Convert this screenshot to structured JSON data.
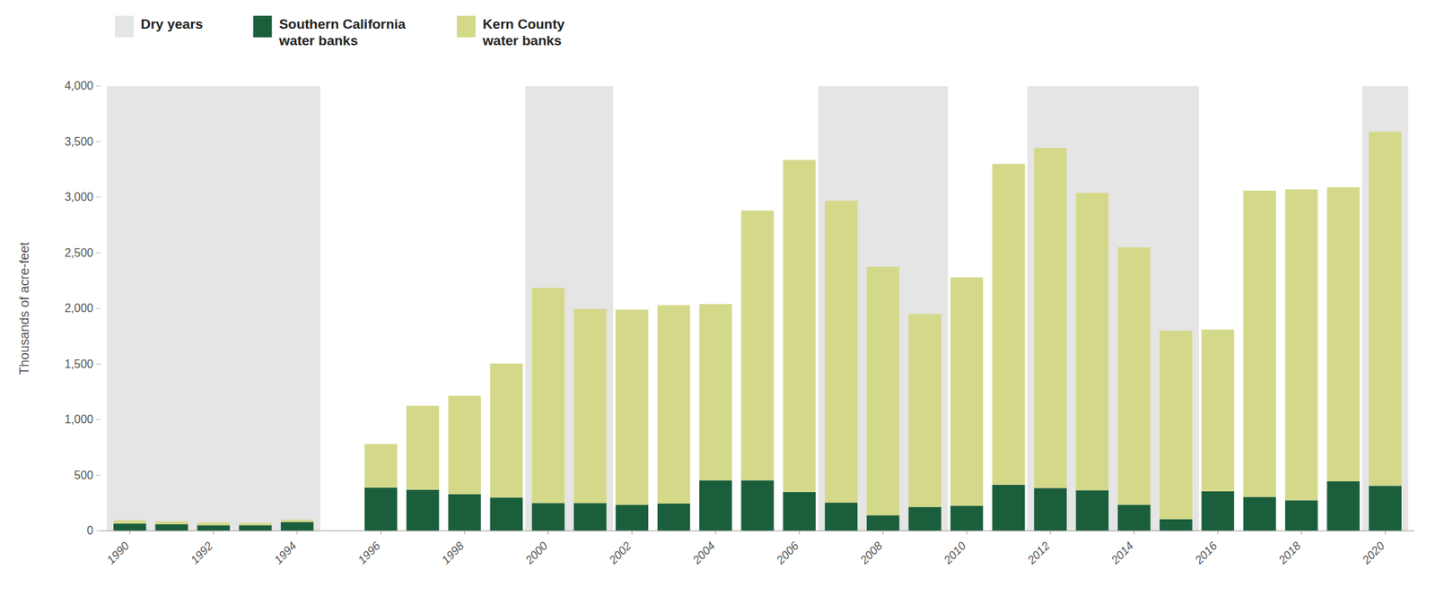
{
  "chart_data": {
    "type": "bar",
    "stacked": true,
    "grid": false,
    "legend": "top",
    "ylabel": "Thousands of acre-feet",
    "x": [
      1990,
      1991,
      1992,
      1993,
      1994,
      1995,
      1996,
      1997,
      1998,
      1999,
      2000,
      2001,
      2002,
      2003,
      2004,
      2005,
      2006,
      2007,
      2008,
      2009,
      2010,
      2011,
      2012,
      2013,
      2014,
      2015,
      2016,
      2017,
      2018,
      2019,
      2020
    ],
    "xlim": [
      1989.3,
      2020.7
    ],
    "xticks": [
      1990,
      1992,
      1994,
      1996,
      1998,
      2000,
      2002,
      2004,
      2006,
      2008,
      2010,
      2012,
      2014,
      2016,
      2018,
      2020
    ],
    "ylim": [
      0,
      4000
    ],
    "yticks": [
      0,
      500,
      {
        "value": 1000,
        "label": "1,000"
      },
      {
        "value": 1500,
        "label": "1,500"
      },
      {
        "value": 2000,
        "label": "2,000"
      },
      {
        "value": 2500,
        "label": "2,500"
      },
      {
        "value": 3000,
        "label": "3,000"
      },
      {
        "value": 3500,
        "label": "3,500"
      },
      {
        "value": 4000,
        "label": "4,000"
      }
    ],
    "bands": {
      "name": "Dry years",
      "color": "#e5e5e5",
      "ranges": [
        [
          1990,
          1993
        ],
        [
          1994,
          1994
        ],
        [
          2000,
          2001
        ],
        [
          2007,
          2009
        ],
        [
          2012,
          2015
        ],
        [
          2020,
          2020
        ]
      ]
    },
    "series": [
      {
        "name": "Southern California\nwater banks",
        "color": "#1b5e3b",
        "values": [
          65,
          60,
          50,
          50,
          80,
          0,
          390,
          370,
          330,
          300,
          250,
          250,
          235,
          245,
          455,
          455,
          350,
          255,
          140,
          215,
          225,
          415,
          385,
          365,
          235,
          105,
          355,
          305,
          275,
          445,
          405
        ]
      },
      {
        "name": "Kern County\nwater banks",
        "color": "#d4d98a",
        "values": [
          30,
          25,
          25,
          20,
          20,
          0,
          390,
          755,
          885,
          1205,
          1935,
          1745,
          1755,
          1785,
          1585,
          2425,
          2985,
          2715,
          2235,
          1735,
          2055,
          2885,
          3060,
          2675,
          2315,
          1695,
          1455,
          2755,
          2795,
          2645,
          3185
        ]
      }
    ]
  }
}
